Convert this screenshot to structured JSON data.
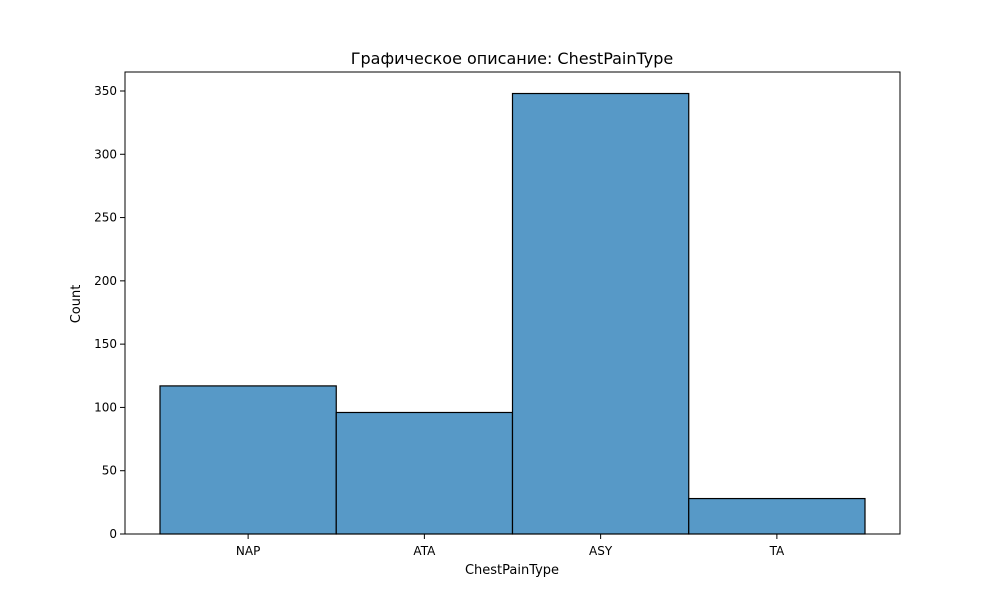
{
  "chart_data": {
    "type": "bar",
    "title": "Графическое описание: ChestPainType",
    "xlabel": "ChestPainType",
    "ylabel": "Count",
    "categories": [
      "NAP",
      "ATA",
      "ASY",
      "TA"
    ],
    "values": [
      117,
      96,
      348,
      28
    ],
    "ylim": [
      0,
      365
    ],
    "yticks": [
      0,
      50,
      100,
      150,
      200,
      250,
      300,
      350
    ],
    "grid": false,
    "bar_color": "#5799c7",
    "bar_edge_color": "#000000"
  }
}
